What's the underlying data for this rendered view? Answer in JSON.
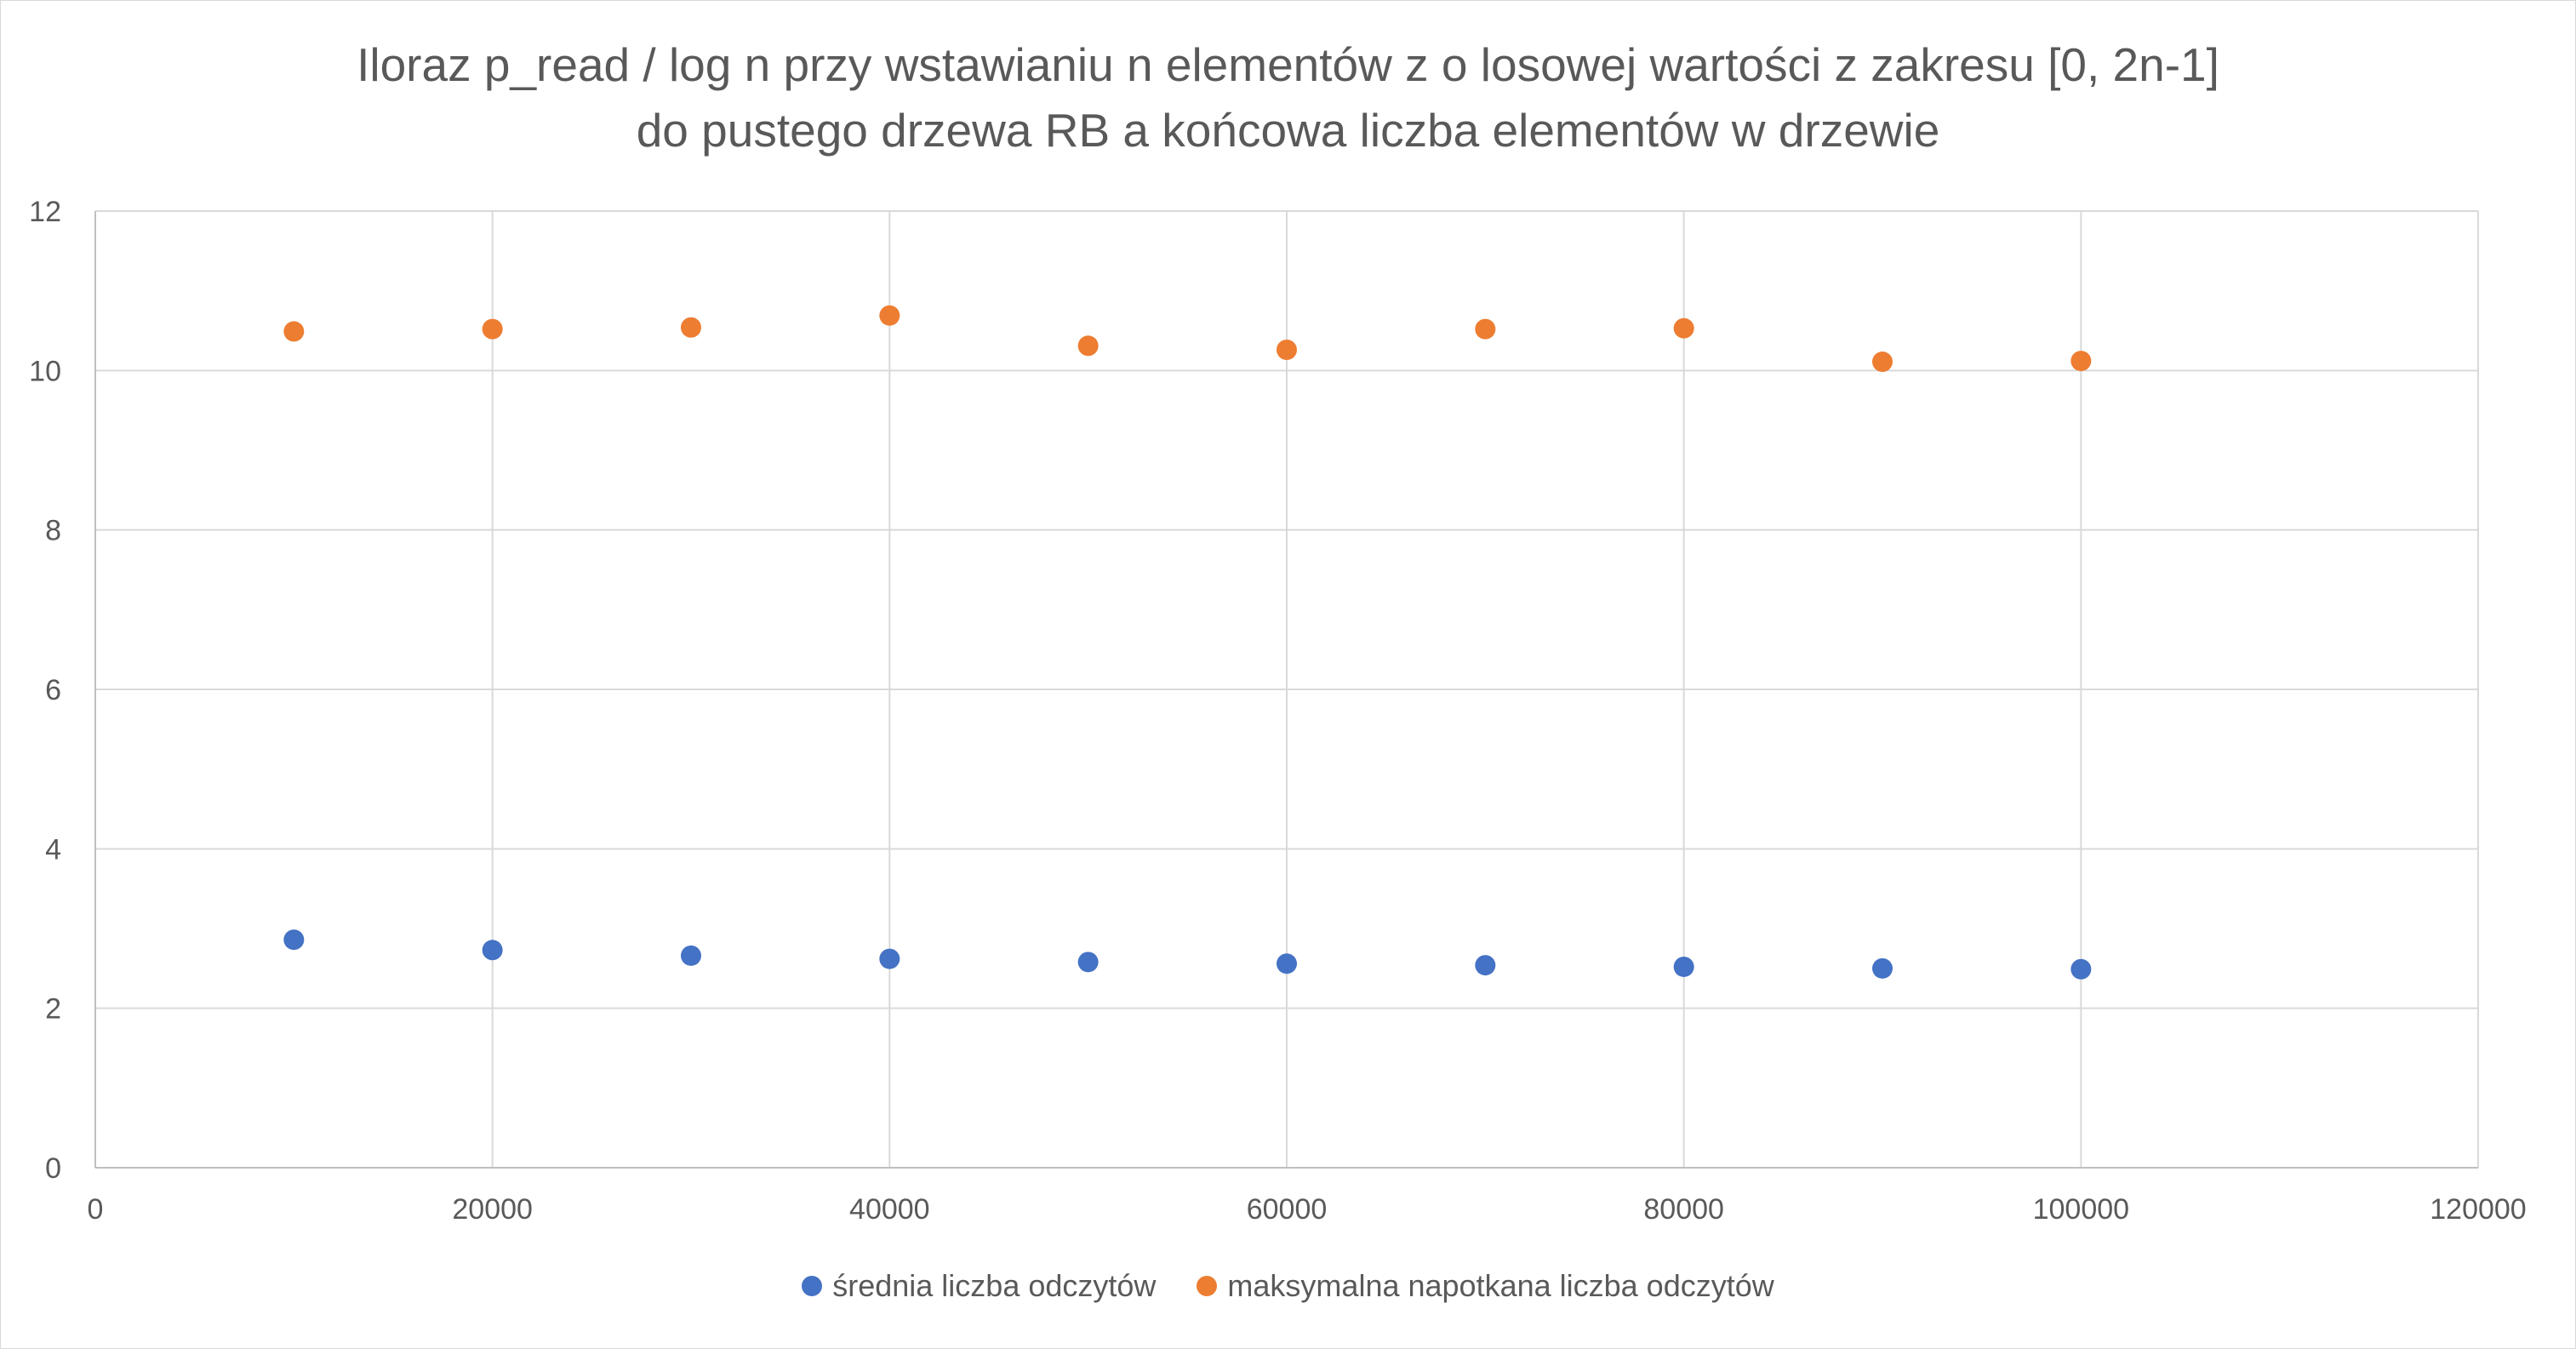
{
  "chart_data": {
    "type": "scatter",
    "title": "Iloraz p_read / log n przy wstawianiu n elementów z o losowej wartości z zakresu [0, 2n-1]",
    "subtitle": "do pustego drzewa RB a końcowa liczba elementów w drzewie",
    "xlabel": "",
    "ylabel": "",
    "xlim": [
      0,
      120000
    ],
    "ylim": [
      0,
      12
    ],
    "x_ticks": [
      "0",
      "20000",
      "40000",
      "60000",
      "80000",
      "100000",
      "120000"
    ],
    "y_ticks": [
      "0",
      "2",
      "4",
      "6",
      "8",
      "10",
      "12"
    ],
    "grid": true,
    "legend_position": "bottom",
    "x": [
      10000,
      20000,
      30000,
      40000,
      50000,
      60000,
      70000,
      80000,
      90000,
      100000
    ],
    "series": [
      {
        "name": "średnia liczba odczytów",
        "color": "#4472C4",
        "values": [
          2.86,
          2.73,
          2.66,
          2.62,
          2.58,
          2.56,
          2.54,
          2.52,
          2.5,
          2.49
        ]
      },
      {
        "name": "maksymalna napotkana liczba odczytów",
        "color": "#ED7D31",
        "values": [
          10.49,
          10.52,
          10.54,
          10.69,
          10.31,
          10.26,
          10.52,
          10.53,
          10.11,
          10.12
        ]
      }
    ]
  }
}
